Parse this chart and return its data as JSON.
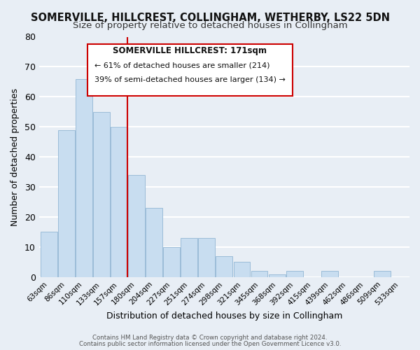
{
  "title": "SOMERVILLE, HILLCREST, COLLINGHAM, WETHERBY, LS22 5DN",
  "subtitle": "Size of property relative to detached houses in Collingham",
  "xlabel": "Distribution of detached houses by size in Collingham",
  "ylabel": "Number of detached properties",
  "bar_color": "#c8ddf0",
  "bar_edge_color": "#9bbcd8",
  "categories": [
    "63sqm",
    "86sqm",
    "110sqm",
    "133sqm",
    "157sqm",
    "180sqm",
    "204sqm",
    "227sqm",
    "251sqm",
    "274sqm",
    "298sqm",
    "321sqm",
    "345sqm",
    "368sqm",
    "392sqm",
    "415sqm",
    "439sqm",
    "462sqm",
    "486sqm",
    "509sqm",
    "533sqm"
  ],
  "values": [
    15,
    49,
    66,
    55,
    50,
    34,
    23,
    10,
    13,
    13,
    7,
    5,
    2,
    1,
    2,
    0,
    2,
    0,
    0,
    2,
    0
  ],
  "ylim": [
    0,
    80
  ],
  "yticks": [
    0,
    10,
    20,
    30,
    40,
    50,
    60,
    70,
    80
  ],
  "vline_x": 4.5,
  "vline_color": "#cc0000",
  "annotation_title": "SOMERVILLE HILLCREST: 171sqm",
  "annotation_line1": "← 61% of detached houses are smaller (214)",
  "annotation_line2": "39% of semi-detached houses are larger (134) →",
  "footer1": "Contains HM Land Registry data © Crown copyright and database right 2024.",
  "footer2": "Contains public sector information licensed under the Open Government Licence v3.0.",
  "background_color": "#e8eef5",
  "plot_bg_color": "#e8eef5",
  "grid_color": "#ffffff",
  "title_fontsize": 10.5,
  "subtitle_fontsize": 9.5
}
